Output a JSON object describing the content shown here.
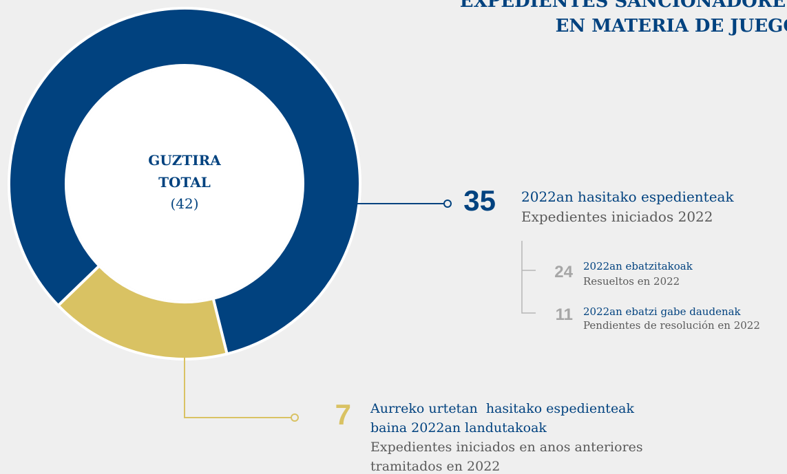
{
  "chart_data": {
    "type": "donut",
    "title": [
      "EXPEDIENTES SANCIONADORES",
      "EN MATERIA DE JUEGO"
    ],
    "center_labels": [
      "GUZTIRA",
      "TOTAL"
    ],
    "total": 42,
    "total_label": "(42)",
    "segments": [
      {
        "value": 35,
        "color": "#01427f",
        "label": [
          "2022an hasitako espedienteak"
        ],
        "sublabel": [
          "Expedientes iniciados 2022"
        ]
      },
      {
        "value": 7,
        "color": "#d9c263",
        "label": [
          "Aurreko urtetan  hasitako espedienteak",
          "baina 2022an landutakoak"
        ],
        "sublabel": [
          "Expedientes iniciados en anos anteriores",
          "tramitados en 2022"
        ]
      }
    ],
    "breakdown": [
      {
        "value": 24,
        "label": "2022an ebatzitakoak",
        "sublabel": "Resueltos en 2022"
      },
      {
        "value": 11,
        "label": "2022an ebatzi gabe daudenak",
        "sublabel": "Pendientes de resolución en 2022"
      }
    ]
  }
}
